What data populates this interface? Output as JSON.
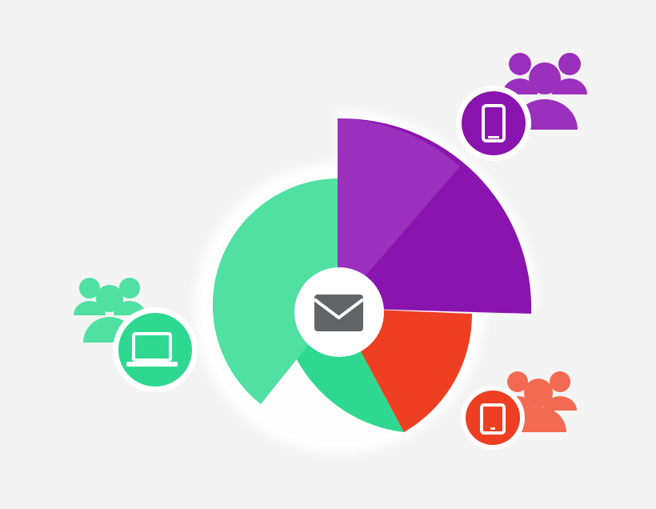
{
  "colors": {
    "background": "#f4f4f4",
    "halo": "#ffffff",
    "desktop_green": "#2fd890",
    "desktop_green_light": "#4fe0a2",
    "mobile_purple": "#8a14ae",
    "mobile_purple_light": "#9a30bc",
    "tablet_red": "#ee3f22",
    "tablet_red_light": "#f26a52",
    "center_circle": "#ffffff",
    "envelope": "#636467"
  },
  "segments": [
    {
      "device": "desktop",
      "color_key": "desktop_green",
      "icon": "laptop-icon"
    },
    {
      "device": "mobile",
      "color_key": "mobile_purple",
      "icon": "smartphone-icon"
    },
    {
      "device": "tablet",
      "color_key": "tablet_red",
      "icon": "tablet-icon"
    }
  ],
  "center_icon": "envelope-icon",
  "audience_icon": "user-group-icon"
}
